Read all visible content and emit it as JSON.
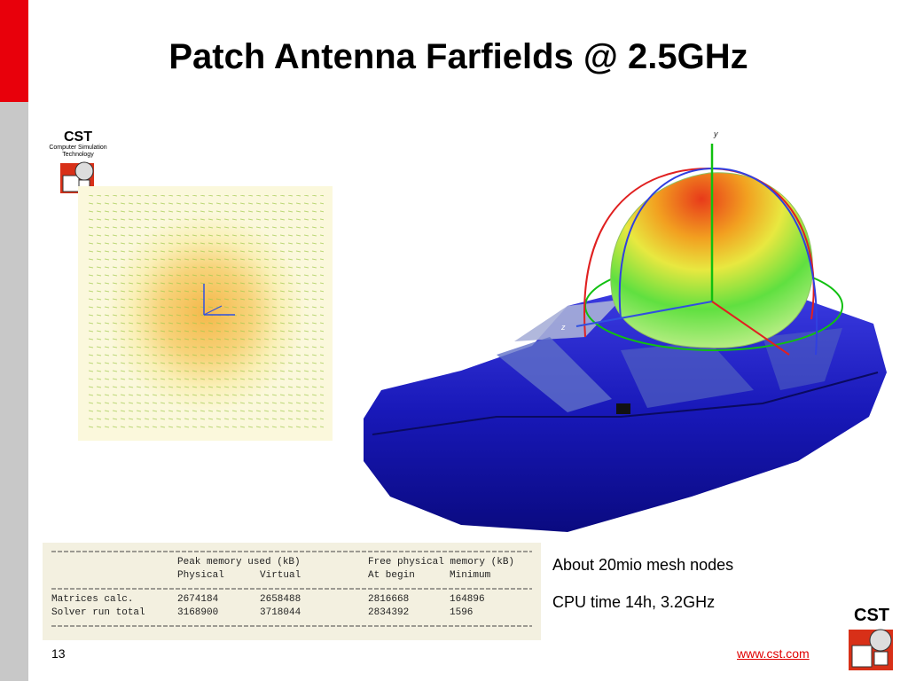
{
  "title": "Patch Antenna Farfields @ 2.5GHz",
  "logo": {
    "name": "CST",
    "line1": "Computer Simulation",
    "line2": "Technology"
  },
  "plot_labels": {
    "y": "y",
    "z": "z"
  },
  "table": {
    "header": [
      "Peak memory used (kB)",
      "Free physical memory (kB)"
    ],
    "subheader": [
      "Physical",
      "Virtual",
      "At begin",
      "Minimum"
    ],
    "rows": [
      [
        "Matrices calc.",
        2674184,
        2658488,
        2816668,
        164896
      ],
      [
        "Solver run total",
        3168900,
        3718044,
        2834392,
        1596
      ]
    ]
  },
  "notes": [
    "About 20mio mesh nodes",
    "CPU time 14h, 3.2GHz"
  ],
  "footer": {
    "page": "13",
    "url": "www.cst.com",
    "logo": "CST"
  }
}
